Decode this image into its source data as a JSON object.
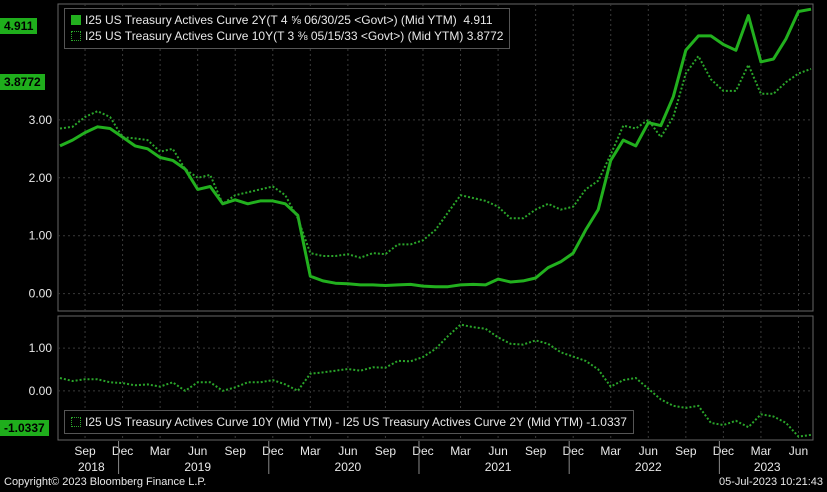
{
  "colors": {
    "series_2y": "#22b01e",
    "series_10y": "#2aa52a",
    "spread": "#2aa52a",
    "grid": "#3a3a3a",
    "text": "#e8e8e8",
    "background": "#000000"
  },
  "legend": {
    "series_2y": "I25 US Treasury Actives Curve 2Y(T 4 ⅝ 06/30/25 <Govt>) (Mid YTM)  4.911",
    "series_10y": "I25 US Treasury Actives Curve 10Y(T 3 ⅜ 05/15/33 <Govt>) (Mid YTM) 3.8772",
    "spread": "I25 US Treasury Actives Curve 10Y (Mid YTM) - I25 US Treasury Actives Curve 2Y (Mid YTM) -1.0337"
  },
  "last_values": {
    "v2y": "4.911",
    "v10y": "3.8772",
    "spread": "-1.0337"
  },
  "footer": {
    "copyright": "Copyright© 2023 Bloomberg Finance L.P.",
    "timestamp": "05-Jul-2023 10:21:43"
  },
  "chart_data": [
    {
      "type": "line",
      "ylim": [
        -0.3,
        5.0
      ],
      "yticks": [
        "0.00",
        "1.00",
        "2.00",
        "3.00"
      ],
      "x": [
        "2018-07",
        "2018-08",
        "2018-09",
        "2018-10",
        "2018-11",
        "2018-12",
        "2019-01",
        "2019-02",
        "2019-03",
        "2019-04",
        "2019-05",
        "2019-06",
        "2019-07",
        "2019-08",
        "2019-09",
        "2019-10",
        "2019-11",
        "2019-12",
        "2020-01",
        "2020-02",
        "2020-03",
        "2020-04",
        "2020-05",
        "2020-06",
        "2020-07",
        "2020-08",
        "2020-09",
        "2020-10",
        "2020-11",
        "2020-12",
        "2021-01",
        "2021-02",
        "2021-03",
        "2021-04",
        "2021-05",
        "2021-06",
        "2021-07",
        "2021-08",
        "2021-09",
        "2021-10",
        "2021-11",
        "2021-12",
        "2022-01",
        "2022-02",
        "2022-03",
        "2022-04",
        "2022-05",
        "2022-06",
        "2022-07",
        "2022-08",
        "2022-09",
        "2022-10",
        "2022-11",
        "2022-12",
        "2023-01",
        "2023-02",
        "2023-03",
        "2023-04",
        "2023-05",
        "2023-06",
        "2023-07"
      ],
      "series": [
        {
          "name": "I25 US Treasury Actives Curve 2Y(T 4 ⅝ 06/30/25 <Govt>) (Mid YTM)",
          "values": [
            2.55,
            2.65,
            2.78,
            2.88,
            2.85,
            2.7,
            2.55,
            2.5,
            2.35,
            2.3,
            2.15,
            1.8,
            1.85,
            1.55,
            1.62,
            1.55,
            1.6,
            1.6,
            1.55,
            1.35,
            0.3,
            0.22,
            0.18,
            0.17,
            0.15,
            0.15,
            0.14,
            0.15,
            0.16,
            0.13,
            0.12,
            0.12,
            0.15,
            0.16,
            0.15,
            0.25,
            0.2,
            0.22,
            0.27,
            0.45,
            0.55,
            0.7,
            1.1,
            1.45,
            2.3,
            2.65,
            2.55,
            2.95,
            2.9,
            3.4,
            4.2,
            4.45,
            4.45,
            4.3,
            4.2,
            4.8,
            4.0,
            4.05,
            4.4,
            4.87,
            4.91
          ]
        },
        {
          "name": "I25 US Treasury Actives Curve 10Y(T 3 ⅜ 05/15/33 <Govt>) (Mid YTM)",
          "values": [
            2.85,
            2.88,
            3.05,
            3.15,
            3.05,
            2.7,
            2.68,
            2.65,
            2.45,
            2.5,
            2.15,
            2.0,
            2.05,
            1.55,
            1.7,
            1.75,
            1.8,
            1.85,
            1.7,
            1.3,
            0.7,
            0.65,
            0.65,
            0.68,
            0.62,
            0.7,
            0.68,
            0.85,
            0.85,
            0.92,
            1.1,
            1.4,
            1.7,
            1.65,
            1.6,
            1.5,
            1.3,
            1.3,
            1.45,
            1.55,
            1.45,
            1.5,
            1.8,
            1.95,
            2.4,
            2.9,
            2.85,
            3.0,
            2.7,
            3.05,
            3.8,
            4.1,
            3.7,
            3.5,
            3.5,
            3.95,
            3.45,
            3.45,
            3.65,
            3.8,
            3.88
          ]
        }
      ]
    },
    {
      "type": "line",
      "ylim": [
        -1.15,
        1.75
      ],
      "yticks": [
        "0.00",
        "1.00"
      ],
      "x": [
        "2018-07",
        "2018-08",
        "2018-09",
        "2018-10",
        "2018-11",
        "2018-12",
        "2019-01",
        "2019-02",
        "2019-03",
        "2019-04",
        "2019-05",
        "2019-06",
        "2019-07",
        "2019-08",
        "2019-09",
        "2019-10",
        "2019-11",
        "2019-12",
        "2020-01",
        "2020-02",
        "2020-03",
        "2020-04",
        "2020-05",
        "2020-06",
        "2020-07",
        "2020-08",
        "2020-09",
        "2020-10",
        "2020-11",
        "2020-12",
        "2021-01",
        "2021-02",
        "2021-03",
        "2021-04",
        "2021-05",
        "2021-06",
        "2021-07",
        "2021-08",
        "2021-09",
        "2021-10",
        "2021-11",
        "2021-12",
        "2022-01",
        "2022-02",
        "2022-03",
        "2022-04",
        "2022-05",
        "2022-06",
        "2022-07",
        "2022-08",
        "2022-09",
        "2022-10",
        "2022-11",
        "2022-12",
        "2023-01",
        "2023-02",
        "2023-03",
        "2023-04",
        "2023-05",
        "2023-06",
        "2023-07"
      ],
      "series": [
        {
          "name": "I25 US Treasury Actives Curve 10Y (Mid YTM) - I25 US Treasury Actives Curve 2Y (Mid YTM)",
          "values": [
            0.3,
            0.23,
            0.27,
            0.27,
            0.2,
            0.18,
            0.13,
            0.15,
            0.1,
            0.2,
            0.0,
            0.2,
            0.2,
            0.0,
            0.08,
            0.2,
            0.2,
            0.25,
            0.15,
            0.0,
            0.4,
            0.43,
            0.47,
            0.51,
            0.47,
            0.55,
            0.54,
            0.7,
            0.69,
            0.79,
            0.98,
            1.28,
            1.55,
            1.49,
            1.45,
            1.25,
            1.1,
            1.08,
            1.18,
            1.1,
            0.9,
            0.8,
            0.7,
            0.5,
            0.1,
            0.25,
            0.3,
            0.05,
            -0.2,
            -0.35,
            -0.4,
            -0.35,
            -0.75,
            -0.8,
            -0.7,
            -0.85,
            -0.55,
            -0.6,
            -0.75,
            -1.07,
            -1.03
          ]
        }
      ]
    }
  ],
  "xaxis": {
    "months": [
      "Sep",
      "Dec",
      "Mar",
      "Jun",
      "Sep",
      "Dec",
      "Mar",
      "Jun",
      "Sep",
      "Dec",
      "Mar",
      "Jun",
      "Sep",
      "Dec",
      "Mar",
      "Jun",
      "Sep",
      "Dec",
      "Mar",
      "Jun"
    ],
    "years": [
      "2018",
      "2019",
      "2020",
      "2021",
      "2022",
      "2023"
    ]
  }
}
